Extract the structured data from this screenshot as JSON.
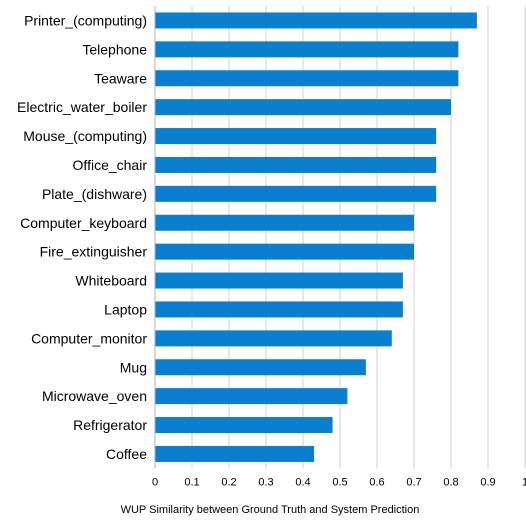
{
  "chart_data": {
    "type": "bar",
    "orientation": "horizontal",
    "categories": [
      "Printer_(computing)",
      "Telephone",
      "Teaware",
      "Electric_water_boiler",
      "Mouse_(computing)",
      "Office_chair",
      "Plate_(dishware)",
      "Computer_keyboard",
      "Fire_extinguisher",
      "Whiteboard",
      "Laptop",
      "Computer_monitor",
      "Mug",
      "Microwave_oven",
      "Refrigerator",
      "Coffee"
    ],
    "values": [
      0.87,
      0.82,
      0.82,
      0.8,
      0.76,
      0.76,
      0.76,
      0.7,
      0.7,
      0.67,
      0.67,
      0.64,
      0.57,
      0.52,
      0.48,
      0.43
    ],
    "xlim": [
      0,
      1
    ],
    "xticks": [
      "0",
      "0.1",
      "0.2",
      "0.3",
      "0.4",
      "0.5",
      "0.6",
      "0.7",
      "0.8",
      "0.9",
      "1"
    ],
    "xlabel": "WUP Similarity between Ground Truth and System Prediction",
    "ylabel": "",
    "title": "",
    "grid": "vertical",
    "legend": "none",
    "bar_color": "#0a7fd0",
    "grid_color": "#d0d0d0"
  }
}
